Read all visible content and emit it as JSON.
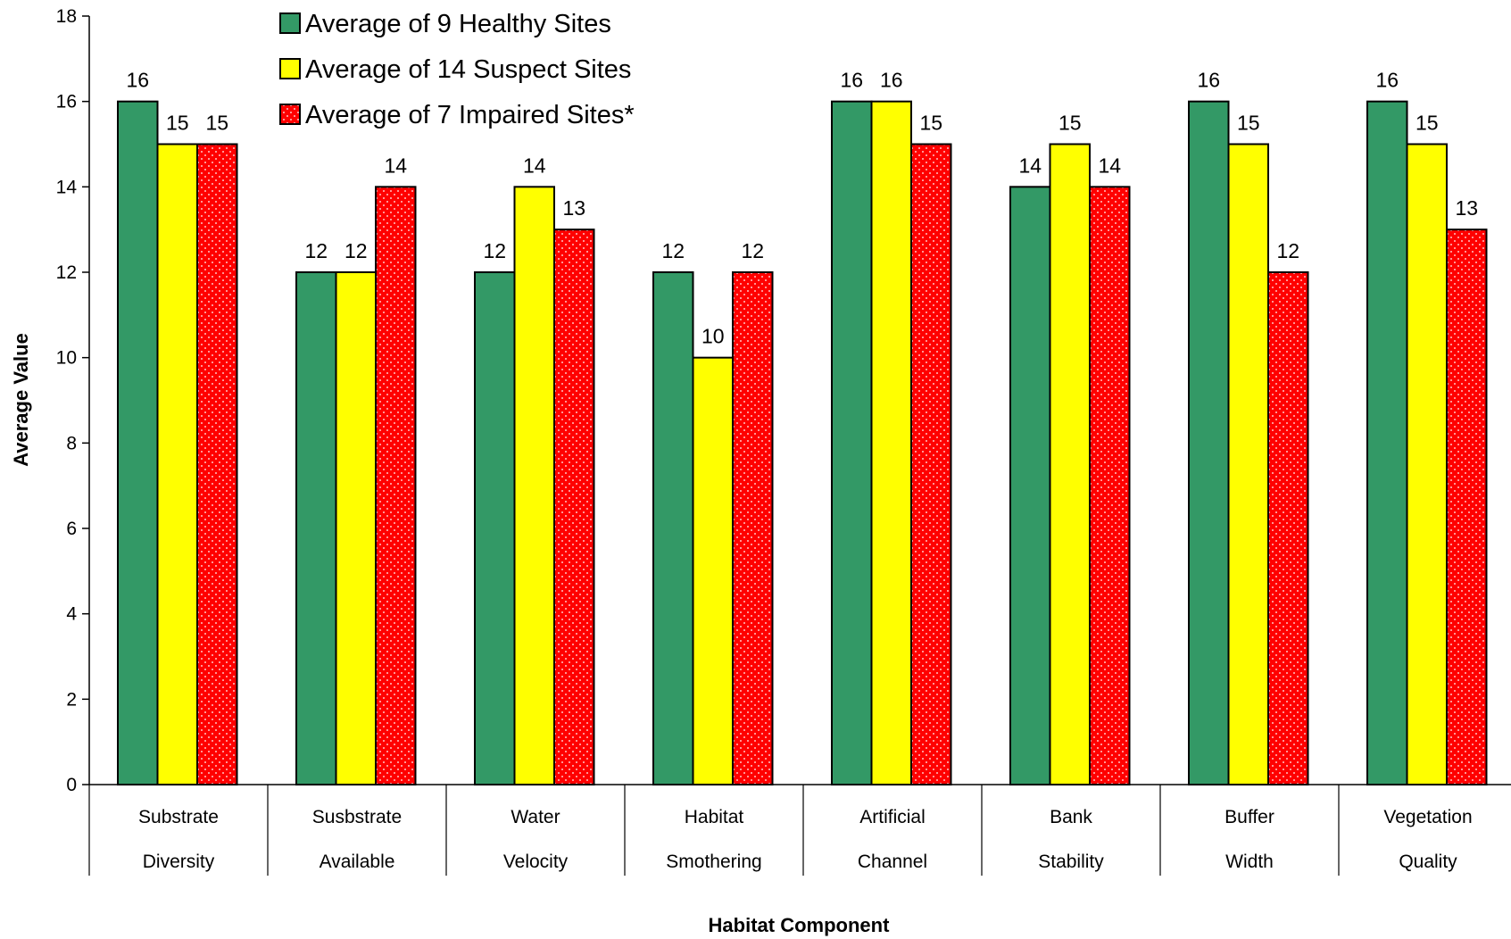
{
  "chart_data": {
    "type": "bar",
    "categories": [
      [
        "Substrate",
        "Diversity"
      ],
      [
        "Susbstrate",
        "Available"
      ],
      [
        "Water",
        "Velocity"
      ],
      [
        "Habitat",
        "Smothering"
      ],
      [
        "Artificial",
        "Channel"
      ],
      [
        "Bank",
        "Stability"
      ],
      [
        "Buffer",
        "Width"
      ],
      [
        "Vegetation",
        "Quality"
      ]
    ],
    "series": [
      {
        "name": "Average of 9 Healthy Sites",
        "color": "#339966",
        "pattern": "solid",
        "values": [
          16,
          12,
          12,
          12,
          16,
          14,
          16,
          16
        ]
      },
      {
        "name": "Average of 14 Suspect Sites",
        "color": "#ffff00",
        "pattern": "solid",
        "values": [
          15,
          12,
          14,
          10,
          16,
          15,
          15,
          15
        ]
      },
      {
        "name": "Average of 7 Impaired Sites*",
        "color": "#ff0000",
        "pattern": "dotted",
        "values": [
          15,
          14,
          13,
          12,
          15,
          14,
          12,
          13
        ]
      }
    ],
    "xlabel": "Habitat Component",
    "ylabel": "Average Value",
    "ylim": [
      0,
      18
    ],
    "yticks": [
      "0",
      "2",
      "4",
      "6",
      "8",
      "10",
      "12",
      "14",
      "16",
      "18"
    ],
    "grid": false,
    "legend_position": "top-left"
  }
}
